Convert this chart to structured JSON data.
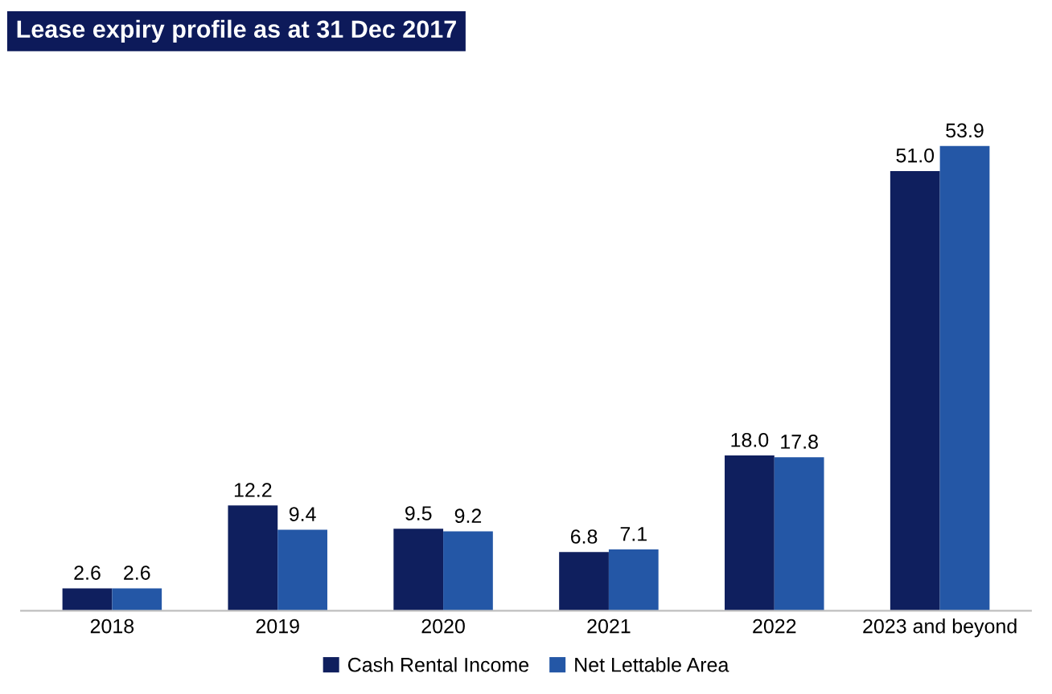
{
  "chart_data": {
    "type": "bar",
    "title": "Lease expiry profile as at 31 Dec 2017",
    "categories": [
      "2018",
      "2019",
      "2020",
      "2021",
      "2022",
      "2023 and beyond"
    ],
    "series": [
      {
        "name": "Cash Rental Income",
        "color": "#0f1f5e",
        "values": [
          2.6,
          12.2,
          9.5,
          6.8,
          18.0,
          51.0
        ],
        "value_labels": [
          "2.6",
          "12.2",
          "9.5",
          "6.8",
          "18.0",
          "51.0"
        ]
      },
      {
        "name": "Net Lettable Area",
        "color": "#2457a6",
        "values": [
          2.6,
          9.4,
          9.2,
          7.1,
          17.8,
          53.9
        ],
        "value_labels": [
          "2.6",
          "9.4",
          "9.2",
          "7.1",
          "17.8",
          "53.9"
        ]
      }
    ],
    "legend": "bottom",
    "grid": false
  }
}
